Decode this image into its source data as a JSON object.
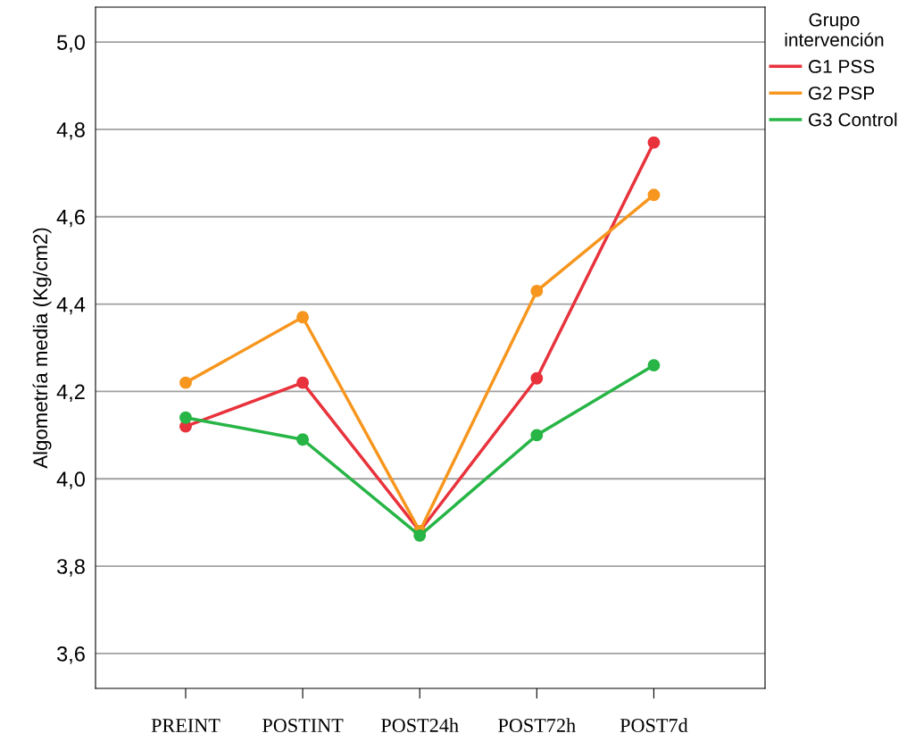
{
  "chart_data": {
    "type": "line",
    "ylabel": "Algometría media (Kg/cm2)",
    "legend_title": "Grupo\nintervención",
    "categories": [
      "PREINT",
      "POSTINT",
      "POST24h",
      "POST72h",
      "POST7d"
    ],
    "series": [
      {
        "name": "G1 PSS",
        "color": "#e8323c",
        "values": [
          4.12,
          4.22,
          3.88,
          4.23,
          4.77
        ]
      },
      {
        "name": "G2 PSP",
        "color": "#f7961e",
        "values": [
          4.22,
          4.37,
          3.88,
          4.43,
          4.65
        ]
      },
      {
        "name": "G3 Control",
        "color": "#27b546",
        "values": [
          4.14,
          4.09,
          3.87,
          4.1,
          4.26
        ]
      }
    ],
    "ylim": [
      3.52,
      5.08
    ],
    "yticks": [
      {
        "value": 3.6,
        "label": "3,6"
      },
      {
        "value": 3.8,
        "label": "3,8"
      },
      {
        "value": 4.0,
        "label": "4,0"
      },
      {
        "value": 4.2,
        "label": "4,2"
      },
      {
        "value": 4.4,
        "label": "4,4"
      },
      {
        "value": 4.6,
        "label": "4,6"
      },
      {
        "value": 4.8,
        "label": "4,8"
      },
      {
        "value": 5.0,
        "label": "5,0"
      }
    ],
    "grid": "y",
    "legend": "top right",
    "marker": "circle",
    "line_style": "solid"
  }
}
